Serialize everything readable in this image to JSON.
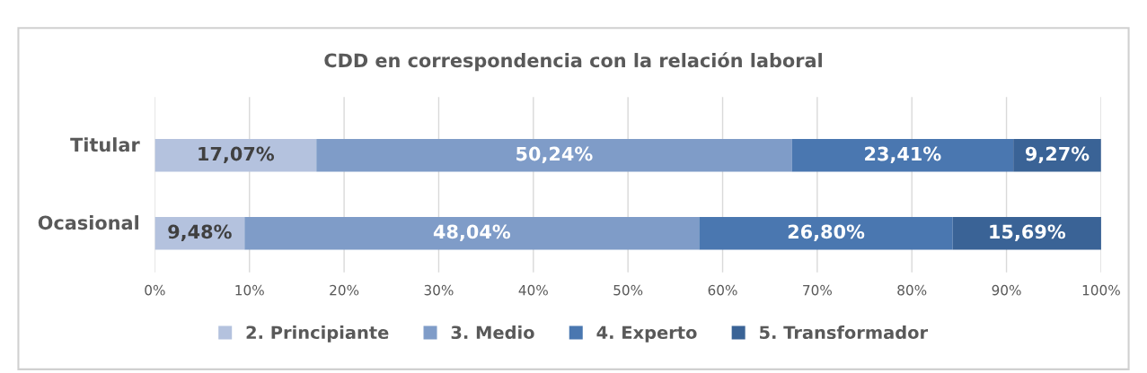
{
  "chart_data": {
    "type": "bar",
    "orientation": "horizontal",
    "stacked": true,
    "title": "CDD en correspondencia con la relación laboral",
    "categories": [
      "Titular",
      "Ocasional"
    ],
    "series": [
      {
        "name": "2. Principiante",
        "color": "#b4c2de",
        "values": [
          17.07,
          9.48
        ],
        "value_labels": [
          "17,07%",
          "9,48%"
        ]
      },
      {
        "name": "3. Medio",
        "color": "#7f9cc8",
        "values": [
          50.24,
          48.04
        ],
        "value_labels": [
          "50,24%",
          "48,04%"
        ]
      },
      {
        "name": "4. Experto",
        "color": "#4a77b0",
        "values": [
          23.41,
          26.8
        ],
        "value_labels": [
          "23,41%",
          "26,80%"
        ]
      },
      {
        "name": "5. Transformador",
        "color": "#3a6396",
        "values": [
          9.27,
          15.69
        ],
        "value_labels": [
          "9,27%",
          "15,69%"
        ]
      }
    ],
    "xlim": [
      0,
      100
    ],
    "xticks": [
      {
        "value": 0,
        "label": "0%"
      },
      {
        "value": 10,
        "label": "10%"
      },
      {
        "value": 20,
        "label": "20%"
      },
      {
        "value": 30,
        "label": "30%"
      },
      {
        "value": 40,
        "label": "40%"
      },
      {
        "value": 50,
        "label": "50%"
      },
      {
        "value": 60,
        "label": "60%"
      },
      {
        "value": 70,
        "label": "70%"
      },
      {
        "value": 80,
        "label": "80%"
      },
      {
        "value": 90,
        "label": "90%"
      },
      {
        "value": 100,
        "label": "100%"
      }
    ],
    "grid": "x",
    "legend": "bottom"
  }
}
